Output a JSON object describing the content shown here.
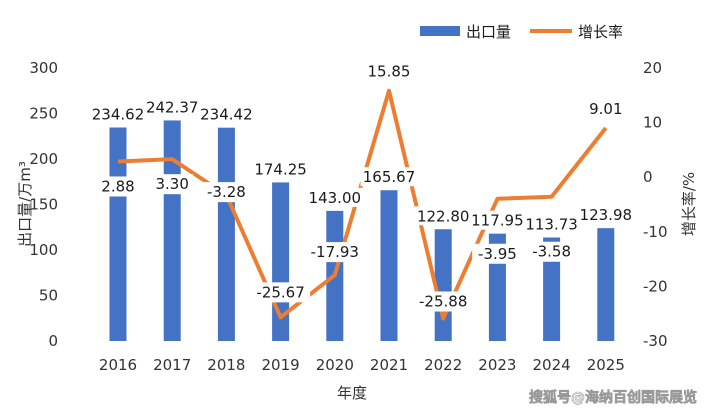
{
  "chart_data": {
    "type": "bar+line",
    "categories": [
      "2016",
      "2017",
      "2018",
      "2019",
      "2020",
      "2021",
      "2022",
      "2023",
      "2024",
      "2025"
    ],
    "series": [
      {
        "name": "出口量",
        "type": "bar",
        "axis": "left",
        "values": [
          234.62,
          242.37,
          234.42,
          174.25,
          143.0,
          165.67,
          122.8,
          117.95,
          113.73,
          123.98
        ],
        "labels": [
          "234.62",
          "242.37",
          "234.42",
          "174.25",
          "143.00",
          "165.67",
          "122.80",
          "117.95",
          "113.73",
          "123.98"
        ],
        "color": "#4472C4"
      },
      {
        "name": "增长率",
        "type": "line",
        "axis": "right",
        "values": [
          2.88,
          3.3,
          -3.28,
          -25.67,
          -17.93,
          15.85,
          -25.88,
          -3.95,
          -3.58,
          9.01
        ],
        "labels": [
          "2.88",
          "3.30",
          "-3.28",
          "-25.67",
          "-17.93",
          "15.85",
          "-25.88",
          "-3.95",
          "-3.58",
          "9.01"
        ],
        "color": "#ED7D31"
      }
    ],
    "xlabel": "年度",
    "ylabel_left": "出口量/万m³",
    "ylabel_right": "增长率/%",
    "ylim_left": [
      0,
      300
    ],
    "yticks_left": [
      "0",
      "50",
      "100",
      "150",
      "200",
      "250",
      "300"
    ],
    "ylim_right": [
      -30,
      20
    ],
    "yticks_right": [
      "-30",
      "-20",
      "-10",
      "0",
      "10",
      "20"
    ],
    "legend": "top-right",
    "grid": false
  },
  "watermark": "搜狐号@海纳百创国际展览"
}
